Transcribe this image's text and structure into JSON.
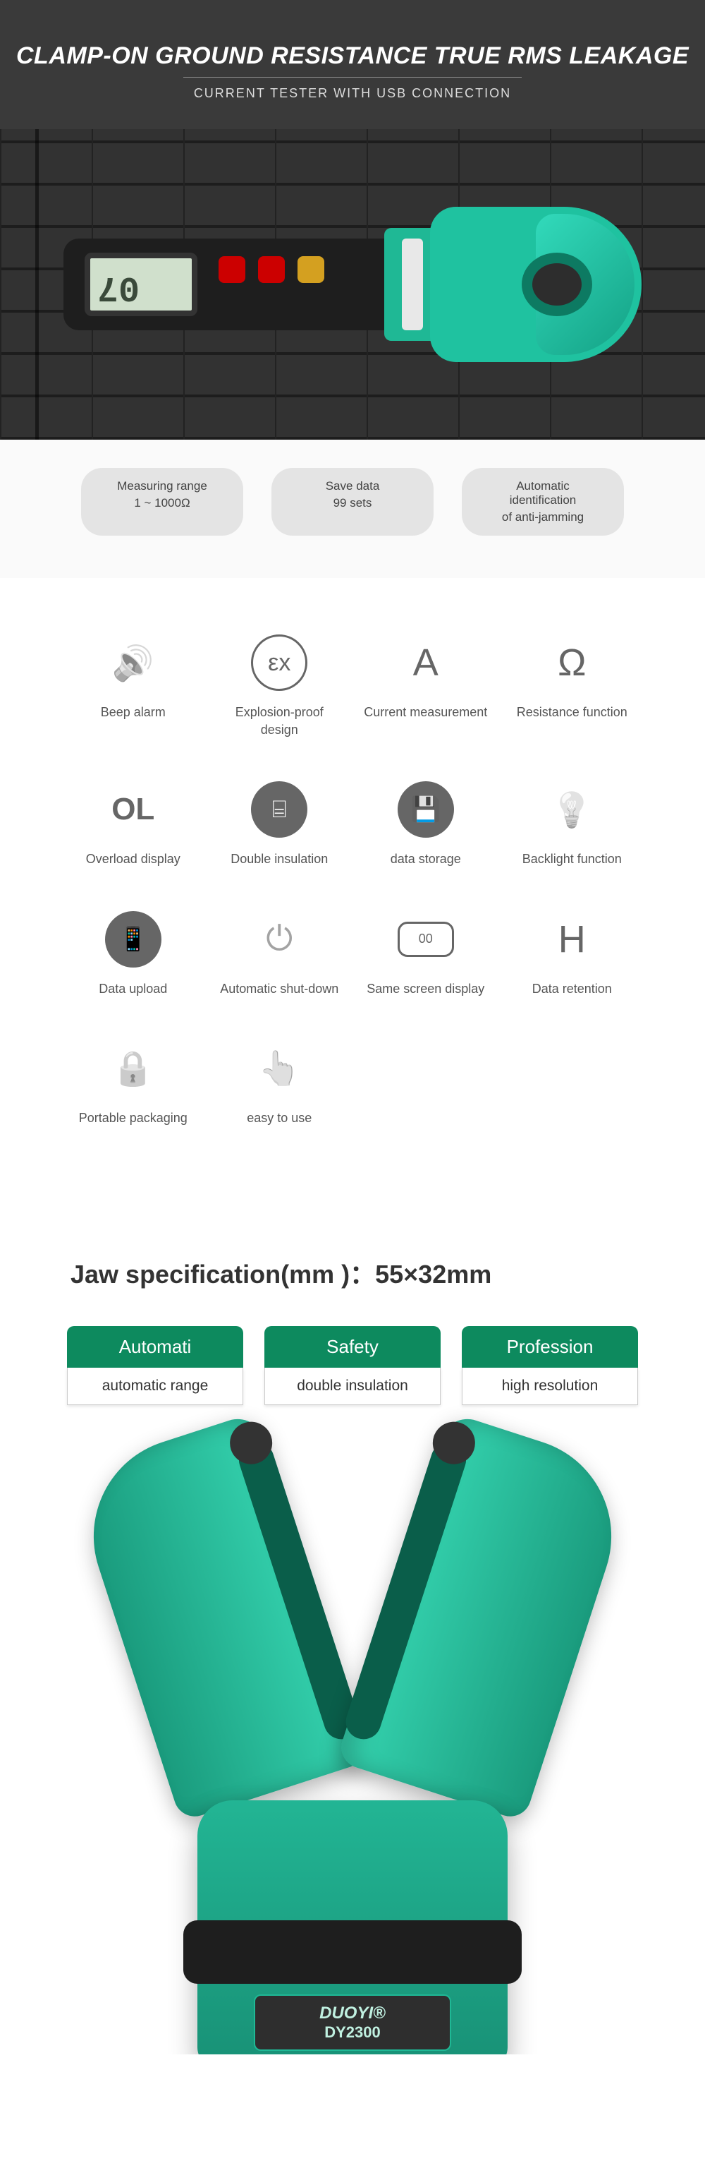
{
  "hero": {
    "title": "CLAMP-ON GROUND RESISTANCE TRUE RMS LEAKAGE",
    "subtitle": "CURRENT TESTER WITH USB CONNECTION",
    "bg_color": "#3a3a3a",
    "title_color": "#ffffff",
    "subtitle_color": "#dddddd"
  },
  "product": {
    "reading": "07",
    "body_color": "#1e1e1e",
    "screen_color": "#d0e0cc",
    "clamp_color_primary": "#1fc2a0",
    "clamp_color_dark": "#0d7a62",
    "clamp_color_light": "#32dabb",
    "button_colors": [
      "#c00000",
      "#c00000",
      "#d4a020"
    ]
  },
  "pills": [
    {
      "title": "Measuring range",
      "sub": "1 ~ 1000Ω"
    },
    {
      "title": "Save data",
      "sub": "99 sets"
    },
    {
      "title": "Automatic identification",
      "sub": "of anti-jamming"
    }
  ],
  "pill_style": {
    "bg": "#e4e4e4",
    "text": "#444444",
    "radius": "30px"
  },
  "features": [
    {
      "label": "Beep alarm",
      "icon_type": "glyph",
      "glyph": "🔊"
    },
    {
      "label": "Explosion-proof design",
      "icon_type": "circle_text",
      "glyph": "εx"
    },
    {
      "label": "Current measurement",
      "icon_type": "letter",
      "glyph": "A"
    },
    {
      "label": "Resistance function",
      "icon_type": "letter",
      "glyph": "Ω"
    },
    {
      "label": "Overload display",
      "icon_type": "letter_bold",
      "glyph": "OL"
    },
    {
      "label": "Double insulation",
      "icon_type": "filled_circle",
      "glyph": "⌸"
    },
    {
      "label": "data storage",
      "icon_type": "filled_circle",
      "glyph": "💾"
    },
    {
      "label": "Backlight function",
      "icon_type": "glyph",
      "glyph": "💡"
    },
    {
      "label": "Data upload",
      "icon_type": "filled_circle",
      "glyph": "📱"
    },
    {
      "label": "Automatic shut-down",
      "icon_type": "glyph",
      "glyph": "⏻"
    },
    {
      "label": "Same screen display",
      "icon_type": "rect_text",
      "glyph": "00"
    },
    {
      "label": "Data retention",
      "icon_type": "letter",
      "glyph": "H"
    },
    {
      "label": "Portable packaging",
      "icon_type": "glyph",
      "glyph": "🔒"
    },
    {
      "label": "easy to use",
      "icon_type": "glyph",
      "glyph": "👆"
    }
  ],
  "feature_style": {
    "icon_color": "#666666",
    "label_color": "#555555",
    "label_fontsize": 18
  },
  "jaw_spec": "Jaw specification(mm )：55×32mm",
  "categories": [
    {
      "top": "Automati",
      "bottom": "automatic range"
    },
    {
      "top": "Safety",
      "bottom": "double insulation"
    },
    {
      "top": "Profession",
      "bottom": "high resolution"
    }
  ],
  "category_style": {
    "top_bg": "#0d8a5e",
    "top_color": "#ffffff",
    "bottom_bg": "#ffffff",
    "bottom_color": "#333333"
  },
  "brand": {
    "name": "DUOYI®",
    "model": "DY2300",
    "plate_bg": "#2e2e2e",
    "plate_border": "#1fb895",
    "text_color": "#c0f0e0"
  },
  "open_clamp_colors": {
    "jaw_gradient_start": "#1a9b7d",
    "jaw_gradient_end": "#35d4b0",
    "inner": "#0a5e4a",
    "base_start": "#22b594",
    "base_end": "#189176",
    "grip": "#1e1e1e"
  }
}
